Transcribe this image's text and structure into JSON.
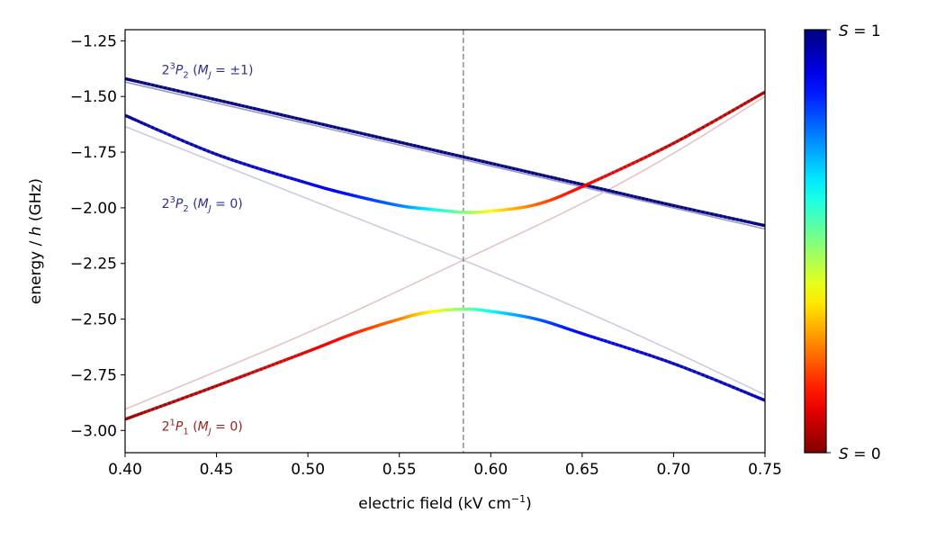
{
  "chart_data": {
    "type": "line",
    "xlabel": "electric field (kV cm",
    "xlabel_sup": "−1",
    "xlabel_end": ")",
    "ylabel_pre": "energy / ",
    "ylabel_italic": "h",
    "ylabel_post": " (GHz)",
    "xlim": [
      0.4,
      0.75
    ],
    "ylim": [
      -3.1,
      -1.2
    ],
    "xticks": [
      0.4,
      0.45,
      0.5,
      0.55,
      0.6,
      0.65,
      0.7,
      0.75
    ],
    "xtick_labels": [
      "0.40",
      "0.45",
      "0.50",
      "0.55",
      "0.60",
      "0.65",
      "0.70",
      "0.75"
    ],
    "yticks": [
      -1.25,
      -1.5,
      -1.75,
      -2.0,
      -2.25,
      -2.5,
      -2.75,
      -3.0
    ],
    "ytick_labels": [
      "−1.25",
      "−1.50",
      "−1.75",
      "−2.00",
      "−2.25",
      "−2.50",
      "−2.75",
      "−3.00"
    ],
    "vline_x": 0.585,
    "series": [
      {
        "x": [
          0.4,
          0.45,
          0.5,
          0.55,
          0.6,
          0.65,
          0.7,
          0.75
        ],
        "y": [
          -1.42,
          -1.515,
          -1.61,
          -1.705,
          -1.8,
          -1.895,
          -1.99,
          -2.08
        ],
        "S": [
          1,
          1,
          1,
          1,
          1,
          1,
          1,
          1
        ],
        "style": "solid"
      },
      {
        "x": [
          0.4,
          0.45,
          0.5,
          0.525,
          0.55,
          0.565,
          0.585,
          0.6,
          0.625,
          0.65,
          0.7,
          0.75
        ],
        "y": [
          -1.585,
          -1.76,
          -1.89,
          -1.945,
          -1.99,
          -2.005,
          -2.02,
          -2.015,
          -1.985,
          -1.905,
          -1.71,
          -1.48
        ],
        "S": [
          0.97,
          0.95,
          0.9,
          0.85,
          0.75,
          0.65,
          0.5,
          0.38,
          0.22,
          0.12,
          0.06,
          0.05
        ],
        "style": "solid"
      },
      {
        "x": [
          0.4,
          0.45,
          0.5,
          0.525,
          0.55,
          0.565,
          0.585,
          0.6,
          0.625,
          0.65,
          0.7,
          0.75
        ],
        "y": [
          -2.95,
          -2.8,
          -2.645,
          -2.565,
          -2.5,
          -2.47,
          -2.455,
          -2.465,
          -2.5,
          -2.565,
          -2.7,
          -2.865
        ],
        "S": [
          0.03,
          0.05,
          0.1,
          0.15,
          0.25,
          0.35,
          0.5,
          0.62,
          0.78,
          0.88,
          0.94,
          0.95
        ],
        "style": "solid"
      },
      {
        "x": [
          0.4,
          0.75
        ],
        "y": [
          -1.435,
          -2.095
        ],
        "color": "#9a9ac4",
        "style": "faint"
      },
      {
        "x": [
          0.4,
          0.5,
          0.585,
          0.65,
          0.7,
          0.75
        ],
        "y": [
          -1.635,
          -1.96,
          -2.235,
          -2.46,
          -2.645,
          -2.84
        ],
        "color": "#cccce0",
        "style": "faint"
      },
      {
        "x": [
          0.4,
          0.5,
          0.585,
          0.65,
          0.7,
          0.75
        ],
        "y": [
          -2.905,
          -2.56,
          -2.235,
          -1.98,
          -1.755,
          -1.5
        ],
        "color": "#e6c4c4",
        "style": "faint"
      }
    ],
    "annotations": [
      {
        "base": "2",
        "sup": "3",
        "term": "P",
        "sub": "2",
        "extra_pre": " (",
        "mj": "M",
        "mj_sub": "J",
        "mj_val": " = ±1)",
        "x": 0.42,
        "y": -1.38,
        "color": "#2e2e96"
      },
      {
        "base": "2",
        "sup": "3",
        "term": "P",
        "sub": "2",
        "extra_pre": " (",
        "mj": "M",
        "mj_sub": "J",
        "mj_val": " = 0)",
        "x": 0.42,
        "y": -1.98,
        "color": "#2e2e96"
      },
      {
        "base": "2",
        "sup": "1",
        "term": "P",
        "sub": "1",
        "extra_pre": " (",
        "mj": "M",
        "mj_sub": "J",
        "mj_val": " = 0)",
        "x": 0.42,
        "y": -2.98,
        "color": "#9a2222"
      }
    ],
    "colorbar": {
      "label_top_var": "S",
      "label_top_val": " = 1",
      "label_bottom_var": "S",
      "label_bottom_val": " = 0",
      "colormap": "jet"
    }
  }
}
